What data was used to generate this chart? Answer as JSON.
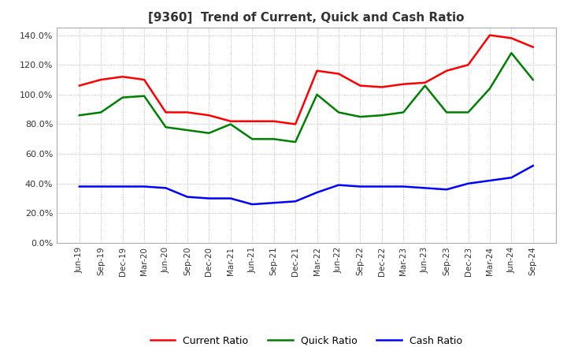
{
  "title": "[9360]  Trend of Current, Quick and Cash Ratio",
  "title_fontsize": 11,
  "background_color": "#ffffff",
  "plot_bg_color": "#ffffff",
  "ylim": [
    0,
    1.45
  ],
  "yticks": [
    0.0,
    0.2,
    0.4,
    0.6,
    0.8,
    1.0,
    1.2,
    1.4
  ],
  "x_labels": [
    "Jun-19",
    "Sep-19",
    "Dec-19",
    "Mar-20",
    "Jun-20",
    "Sep-20",
    "Dec-20",
    "Mar-21",
    "Jun-21",
    "Sep-21",
    "Dec-21",
    "Mar-22",
    "Jun-22",
    "Sep-22",
    "Dec-22",
    "Mar-23",
    "Jun-23",
    "Sep-23",
    "Dec-23",
    "Mar-24",
    "Jun-24",
    "Sep-24"
  ],
  "current_ratio": [
    1.06,
    1.1,
    1.12,
    1.1,
    0.88,
    0.88,
    0.86,
    0.82,
    0.82,
    0.82,
    0.8,
    1.16,
    1.14,
    1.06,
    1.05,
    1.07,
    1.08,
    1.16,
    1.2,
    1.4,
    1.38,
    1.32
  ],
  "quick_ratio": [
    0.86,
    0.88,
    0.98,
    0.99,
    0.78,
    0.76,
    0.74,
    0.8,
    0.7,
    0.7,
    0.68,
    1.0,
    0.88,
    0.85,
    0.86,
    0.88,
    1.06,
    0.88,
    0.88,
    1.04,
    1.28,
    1.1
  ],
  "cash_ratio": [
    0.38,
    0.38,
    0.38,
    0.38,
    0.37,
    0.31,
    0.3,
    0.3,
    0.26,
    0.27,
    0.28,
    0.34,
    0.39,
    0.38,
    0.38,
    0.38,
    0.37,
    0.36,
    0.4,
    0.42,
    0.44,
    0.52
  ],
  "current_color": "#ff0000",
  "quick_color": "#008000",
  "cash_color": "#0000ff",
  "legend_labels": [
    "Current Ratio",
    "Quick Ratio",
    "Cash Ratio"
  ]
}
